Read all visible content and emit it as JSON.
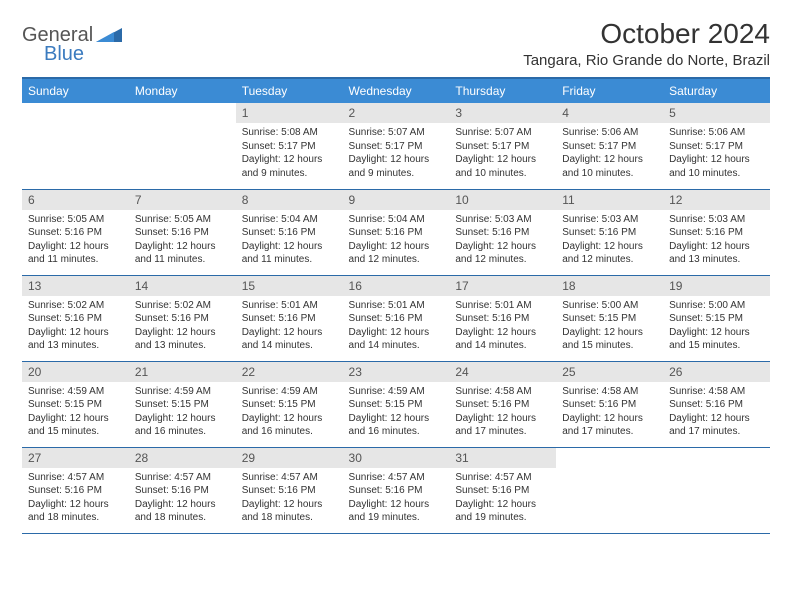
{
  "brand": {
    "general": "General",
    "blue": "Blue"
  },
  "title": "October 2024",
  "location": "Tangara, Rio Grande do Norte, Brazil",
  "colors": {
    "header_bg": "#3b8bd4",
    "header_border": "#2b6aa8",
    "daynum_bg": "#e6e6e6",
    "text": "#333333",
    "brand_blue": "#3b7bbf"
  },
  "weekdays": [
    "Sunday",
    "Monday",
    "Tuesday",
    "Wednesday",
    "Thursday",
    "Friday",
    "Saturday"
  ],
  "weeks": [
    [
      {
        "n": "",
        "sr": "",
        "ss": "",
        "dl": ""
      },
      {
        "n": "",
        "sr": "",
        "ss": "",
        "dl": ""
      },
      {
        "n": "1",
        "sr": "Sunrise: 5:08 AM",
        "ss": "Sunset: 5:17 PM",
        "dl": "Daylight: 12 hours and 9 minutes."
      },
      {
        "n": "2",
        "sr": "Sunrise: 5:07 AM",
        "ss": "Sunset: 5:17 PM",
        "dl": "Daylight: 12 hours and 9 minutes."
      },
      {
        "n": "3",
        "sr": "Sunrise: 5:07 AM",
        "ss": "Sunset: 5:17 PM",
        "dl": "Daylight: 12 hours and 10 minutes."
      },
      {
        "n": "4",
        "sr": "Sunrise: 5:06 AM",
        "ss": "Sunset: 5:17 PM",
        "dl": "Daylight: 12 hours and 10 minutes."
      },
      {
        "n": "5",
        "sr": "Sunrise: 5:06 AM",
        "ss": "Sunset: 5:17 PM",
        "dl": "Daylight: 12 hours and 10 minutes."
      }
    ],
    [
      {
        "n": "6",
        "sr": "Sunrise: 5:05 AM",
        "ss": "Sunset: 5:16 PM",
        "dl": "Daylight: 12 hours and 11 minutes."
      },
      {
        "n": "7",
        "sr": "Sunrise: 5:05 AM",
        "ss": "Sunset: 5:16 PM",
        "dl": "Daylight: 12 hours and 11 minutes."
      },
      {
        "n": "8",
        "sr": "Sunrise: 5:04 AM",
        "ss": "Sunset: 5:16 PM",
        "dl": "Daylight: 12 hours and 11 minutes."
      },
      {
        "n": "9",
        "sr": "Sunrise: 5:04 AM",
        "ss": "Sunset: 5:16 PM",
        "dl": "Daylight: 12 hours and 12 minutes."
      },
      {
        "n": "10",
        "sr": "Sunrise: 5:03 AM",
        "ss": "Sunset: 5:16 PM",
        "dl": "Daylight: 12 hours and 12 minutes."
      },
      {
        "n": "11",
        "sr": "Sunrise: 5:03 AM",
        "ss": "Sunset: 5:16 PM",
        "dl": "Daylight: 12 hours and 12 minutes."
      },
      {
        "n": "12",
        "sr": "Sunrise: 5:03 AM",
        "ss": "Sunset: 5:16 PM",
        "dl": "Daylight: 12 hours and 13 minutes."
      }
    ],
    [
      {
        "n": "13",
        "sr": "Sunrise: 5:02 AM",
        "ss": "Sunset: 5:16 PM",
        "dl": "Daylight: 12 hours and 13 minutes."
      },
      {
        "n": "14",
        "sr": "Sunrise: 5:02 AM",
        "ss": "Sunset: 5:16 PM",
        "dl": "Daylight: 12 hours and 13 minutes."
      },
      {
        "n": "15",
        "sr": "Sunrise: 5:01 AM",
        "ss": "Sunset: 5:16 PM",
        "dl": "Daylight: 12 hours and 14 minutes."
      },
      {
        "n": "16",
        "sr": "Sunrise: 5:01 AM",
        "ss": "Sunset: 5:16 PM",
        "dl": "Daylight: 12 hours and 14 minutes."
      },
      {
        "n": "17",
        "sr": "Sunrise: 5:01 AM",
        "ss": "Sunset: 5:16 PM",
        "dl": "Daylight: 12 hours and 14 minutes."
      },
      {
        "n": "18",
        "sr": "Sunrise: 5:00 AM",
        "ss": "Sunset: 5:15 PM",
        "dl": "Daylight: 12 hours and 15 minutes."
      },
      {
        "n": "19",
        "sr": "Sunrise: 5:00 AM",
        "ss": "Sunset: 5:15 PM",
        "dl": "Daylight: 12 hours and 15 minutes."
      }
    ],
    [
      {
        "n": "20",
        "sr": "Sunrise: 4:59 AM",
        "ss": "Sunset: 5:15 PM",
        "dl": "Daylight: 12 hours and 15 minutes."
      },
      {
        "n": "21",
        "sr": "Sunrise: 4:59 AM",
        "ss": "Sunset: 5:15 PM",
        "dl": "Daylight: 12 hours and 16 minutes."
      },
      {
        "n": "22",
        "sr": "Sunrise: 4:59 AM",
        "ss": "Sunset: 5:15 PM",
        "dl": "Daylight: 12 hours and 16 minutes."
      },
      {
        "n": "23",
        "sr": "Sunrise: 4:59 AM",
        "ss": "Sunset: 5:15 PM",
        "dl": "Daylight: 12 hours and 16 minutes."
      },
      {
        "n": "24",
        "sr": "Sunrise: 4:58 AM",
        "ss": "Sunset: 5:16 PM",
        "dl": "Daylight: 12 hours and 17 minutes."
      },
      {
        "n": "25",
        "sr": "Sunrise: 4:58 AM",
        "ss": "Sunset: 5:16 PM",
        "dl": "Daylight: 12 hours and 17 minutes."
      },
      {
        "n": "26",
        "sr": "Sunrise: 4:58 AM",
        "ss": "Sunset: 5:16 PM",
        "dl": "Daylight: 12 hours and 17 minutes."
      }
    ],
    [
      {
        "n": "27",
        "sr": "Sunrise: 4:57 AM",
        "ss": "Sunset: 5:16 PM",
        "dl": "Daylight: 12 hours and 18 minutes."
      },
      {
        "n": "28",
        "sr": "Sunrise: 4:57 AM",
        "ss": "Sunset: 5:16 PM",
        "dl": "Daylight: 12 hours and 18 minutes."
      },
      {
        "n": "29",
        "sr": "Sunrise: 4:57 AM",
        "ss": "Sunset: 5:16 PM",
        "dl": "Daylight: 12 hours and 18 minutes."
      },
      {
        "n": "30",
        "sr": "Sunrise: 4:57 AM",
        "ss": "Sunset: 5:16 PM",
        "dl": "Daylight: 12 hours and 19 minutes."
      },
      {
        "n": "31",
        "sr": "Sunrise: 4:57 AM",
        "ss": "Sunset: 5:16 PM",
        "dl": "Daylight: 12 hours and 19 minutes."
      },
      {
        "n": "",
        "sr": "",
        "ss": "",
        "dl": ""
      },
      {
        "n": "",
        "sr": "",
        "ss": "",
        "dl": ""
      }
    ]
  ]
}
